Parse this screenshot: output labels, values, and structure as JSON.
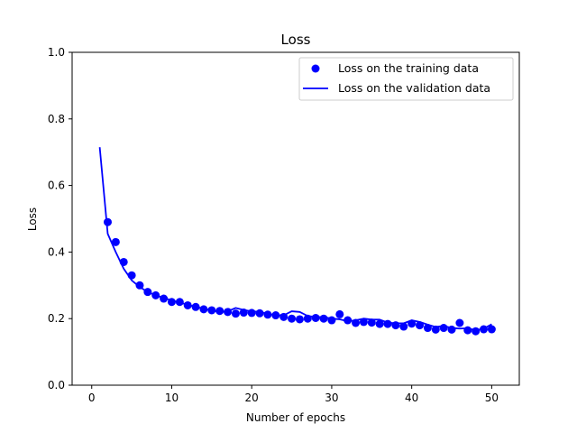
{
  "chart_data": {
    "type": "line",
    "title": "Loss",
    "xlabel": "Number of epochs",
    "ylabel": "Loss",
    "xlim": [
      -2.45,
      53.45
    ],
    "ylim": [
      0.0,
      1.0
    ],
    "xticks": [
      "0",
      "10",
      "20",
      "30",
      "40",
      "50"
    ],
    "yticks": [
      "0.0",
      "0.2",
      "0.4",
      "0.6",
      "0.8",
      "1.0"
    ],
    "grid": false,
    "legend_position": "top-right",
    "series": [
      {
        "name": "Loss on the training data",
        "style": "markers",
        "color": "#0000ff",
        "x": [
          2,
          3,
          4,
          5,
          6,
          7,
          8,
          9,
          10,
          11,
          12,
          13,
          14,
          15,
          16,
          17,
          18,
          19,
          20,
          21,
          22,
          23,
          24,
          25,
          26,
          27,
          28,
          29,
          30,
          31,
          32,
          33,
          34,
          35,
          36,
          37,
          38,
          39,
          40,
          41,
          42,
          43,
          44,
          45,
          46,
          47,
          48,
          49,
          50
        ],
        "y": [
          0.49,
          0.43,
          0.37,
          0.33,
          0.3,
          0.28,
          0.27,
          0.26,
          0.25,
          0.25,
          0.24,
          0.235,
          0.228,
          0.225,
          0.223,
          0.22,
          0.215,
          0.218,
          0.217,
          0.216,
          0.212,
          0.21,
          0.205,
          0.2,
          0.198,
          0.2,
          0.202,
          0.2,
          0.195,
          0.213,
          0.195,
          0.187,
          0.19,
          0.188,
          0.184,
          0.184,
          0.18,
          0.176,
          0.185,
          0.18,
          0.172,
          0.167,
          0.172,
          0.167,
          0.187,
          0.165,
          0.162,
          0.168,
          0.168
        ]
      },
      {
        "name": "Loss on the validation data",
        "style": "line",
        "color": "#0000ff",
        "x": [
          1,
          2,
          3,
          4,
          5,
          6,
          7,
          8,
          9,
          10,
          11,
          12,
          13,
          14,
          15,
          16,
          17,
          18,
          19,
          20,
          21,
          22,
          23,
          24,
          25,
          26,
          27,
          28,
          29,
          30,
          31,
          32,
          33,
          34,
          35,
          36,
          37,
          38,
          39,
          40,
          41,
          42,
          43,
          44,
          45,
          46,
          47,
          48,
          49,
          50
        ],
        "y": [
          0.715,
          0.455,
          0.4,
          0.35,
          0.315,
          0.295,
          0.28,
          0.27,
          0.262,
          0.255,
          0.248,
          0.242,
          0.235,
          0.23,
          0.225,
          0.22,
          0.222,
          0.232,
          0.226,
          0.222,
          0.22,
          0.215,
          0.21,
          0.21,
          0.222,
          0.22,
          0.208,
          0.205,
          0.205,
          0.2,
          0.198,
          0.192,
          0.195,
          0.2,
          0.197,
          0.197,
          0.188,
          0.186,
          0.186,
          0.195,
          0.19,
          0.182,
          0.175,
          0.178,
          0.172,
          0.17,
          0.171,
          0.165,
          0.17,
          0.183
        ]
      }
    ]
  }
}
